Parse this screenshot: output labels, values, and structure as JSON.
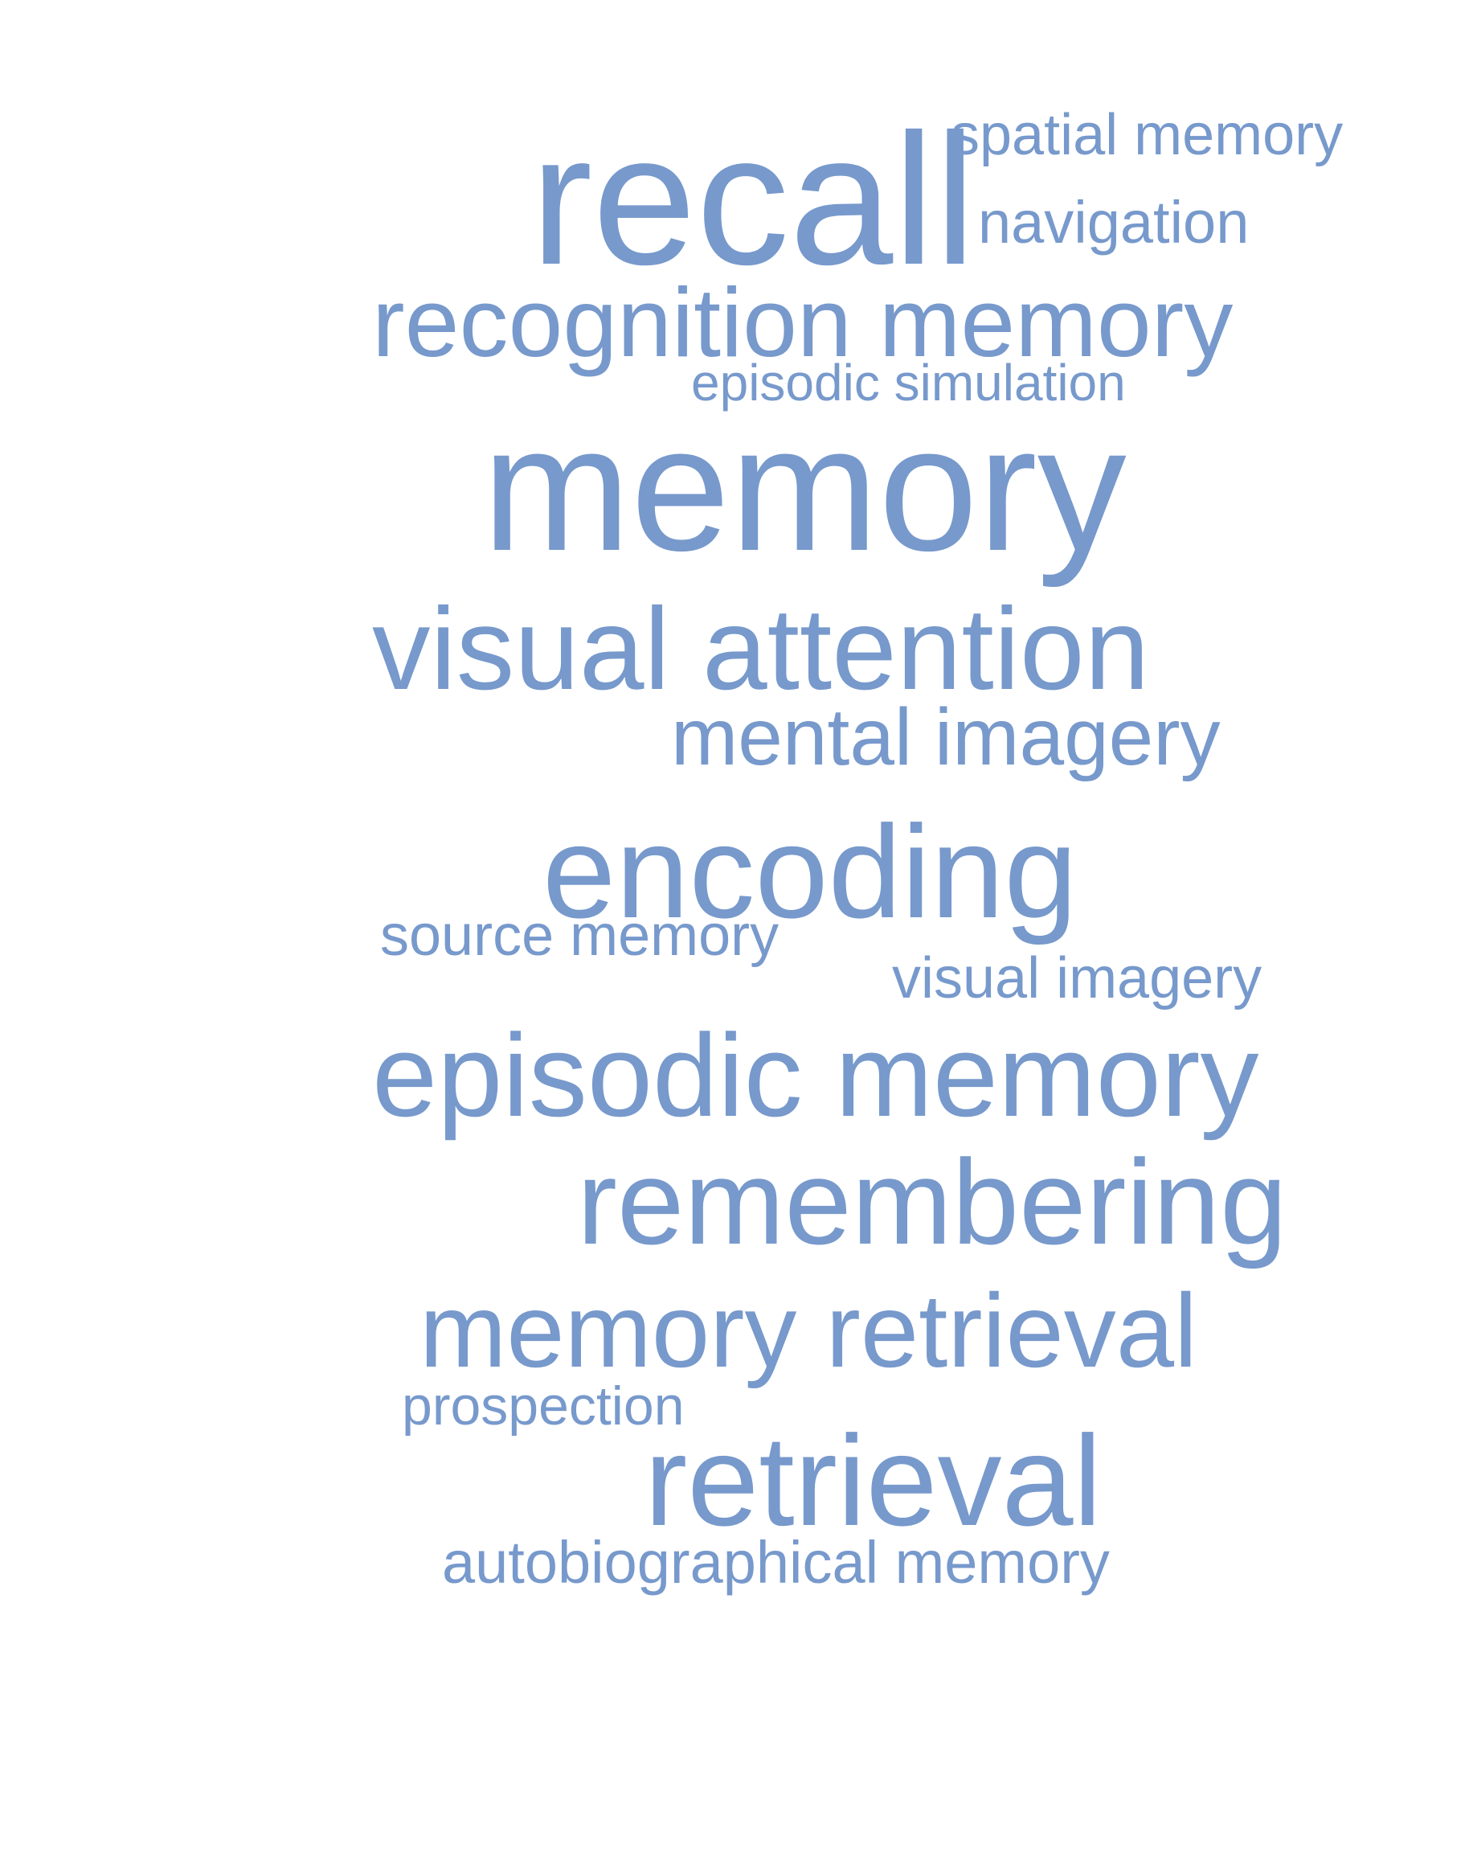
{
  "colors": {
    "text": "#7799cc",
    "background": "#ffffff"
  },
  "words": [
    {
      "text": "spatial memory",
      "size": "small"
    },
    {
      "text": "recall",
      "size": "large"
    },
    {
      "text": "navigation",
      "size": "small"
    },
    {
      "text": "recognition memory",
      "size": "medium"
    },
    {
      "text": "episodic simulation",
      "size": "small"
    },
    {
      "text": "memory",
      "size": "largest"
    },
    {
      "text": "visual attention",
      "size": "medium"
    },
    {
      "text": "mental imagery",
      "size": "medium"
    },
    {
      "text": "encoding",
      "size": "large"
    },
    {
      "text": "source memory",
      "size": "small"
    },
    {
      "text": "visual imagery",
      "size": "small"
    },
    {
      "text": "episodic memory",
      "size": "medium"
    },
    {
      "text": "remembering",
      "size": "medium"
    },
    {
      "text": "memory retrieval",
      "size": "medium"
    },
    {
      "text": "prospection",
      "size": "small"
    },
    {
      "text": "retrieval",
      "size": "large"
    },
    {
      "text": "autobiographical memory",
      "size": "small"
    }
  ]
}
